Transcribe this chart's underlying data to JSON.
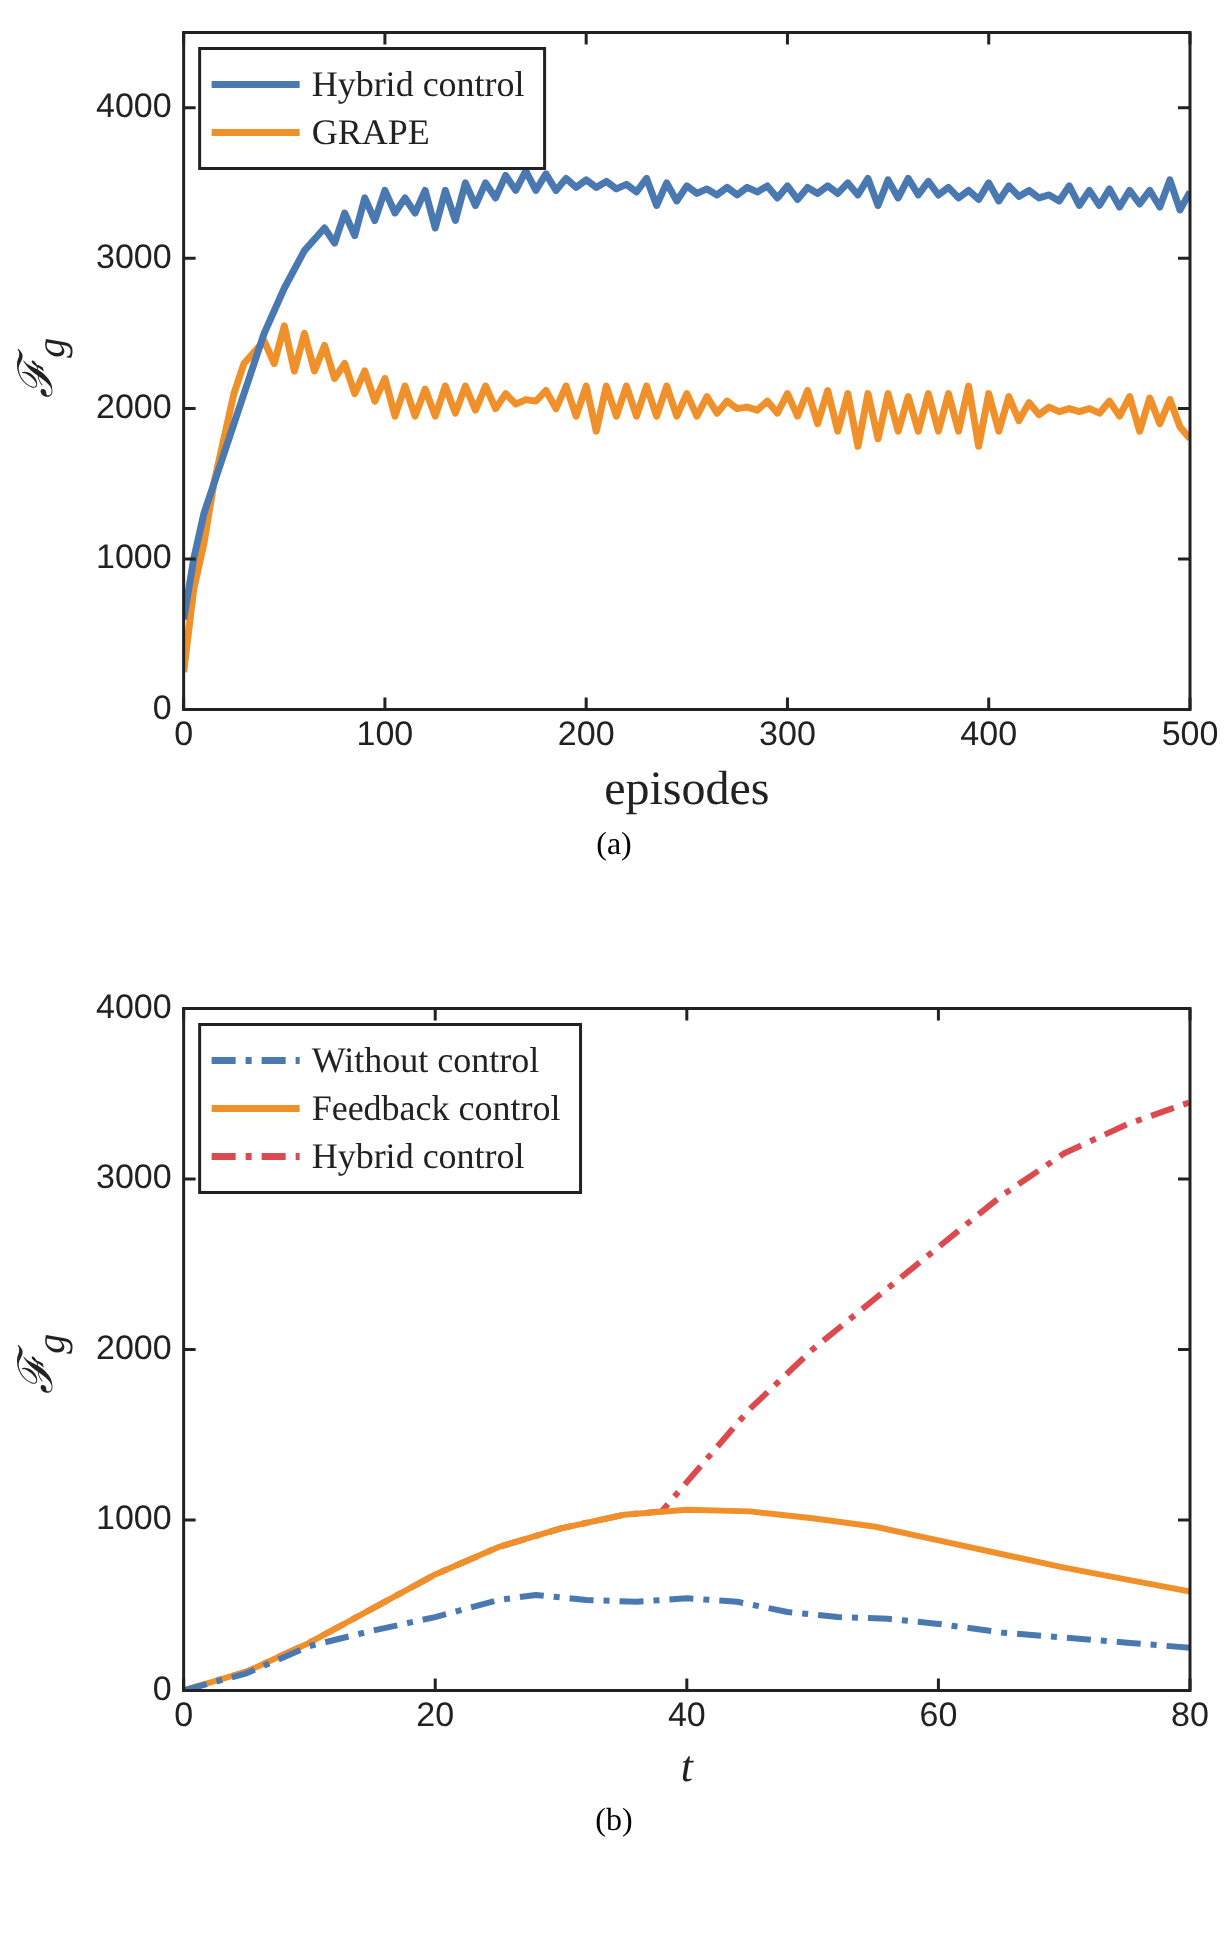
{
  "chart_data": [
    {
      "type": "line",
      "xlabel": "episodes",
      "ylabel": "ℱ$_{g}$",
      "annotations": [
        "(a)"
      ],
      "xlim": [
        0,
        500
      ],
      "ylim": [
        0,
        4500
      ],
      "xticks": [
        0,
        100,
        200,
        300,
        400,
        500
      ],
      "yticks": [
        0,
        1000,
        2000,
        3000,
        4000
      ],
      "grid": false,
      "legend": "top left",
      "line_style": "solid",
      "series": [
        {
          "name": "Hybrid control",
          "color": "#4a78b0",
          "x": [
            0,
            5,
            10,
            20,
            30,
            40,
            50,
            60,
            70,
            75,
            80,
            85,
            90,
            95,
            100,
            105,
            110,
            115,
            120,
            125,
            130,
            135,
            140,
            145,
            150,
            155,
            160,
            165,
            170,
            175,
            180,
            185,
            190,
            195,
            200,
            205,
            210,
            215,
            220,
            225,
            230,
            235,
            240,
            245,
            250,
            255,
            260,
            265,
            270,
            275,
            280,
            285,
            290,
            295,
            300,
            305,
            310,
            315,
            320,
            325,
            330,
            335,
            340,
            345,
            350,
            355,
            360,
            365,
            370,
            375,
            380,
            385,
            390,
            395,
            400,
            405,
            410,
            415,
            420,
            425,
            430,
            435,
            440,
            445,
            450,
            455,
            460,
            465,
            470,
            475,
            480,
            485,
            490,
            495,
            500
          ],
          "values": [
            600,
            1000,
            1300,
            1700,
            2100,
            2500,
            2800,
            3050,
            3200,
            3100,
            3300,
            3150,
            3400,
            3250,
            3450,
            3300,
            3400,
            3300,
            3450,
            3200,
            3450,
            3250,
            3500,
            3350,
            3500,
            3400,
            3550,
            3450,
            3580,
            3450,
            3560,
            3450,
            3530,
            3470,
            3520,
            3470,
            3510,
            3460,
            3490,
            3440,
            3530,
            3350,
            3500,
            3380,
            3480,
            3430,
            3460,
            3420,
            3470,
            3420,
            3470,
            3440,
            3480,
            3400,
            3480,
            3390,
            3470,
            3430,
            3480,
            3430,
            3500,
            3420,
            3530,
            3350,
            3520,
            3400,
            3530,
            3420,
            3510,
            3420,
            3470,
            3400,
            3450,
            3390,
            3500,
            3380,
            3480,
            3410,
            3450,
            3400,
            3420,
            3380,
            3480,
            3350,
            3450,
            3350,
            3460,
            3340,
            3450,
            3360,
            3450,
            3340,
            3520,
            3320,
            3440
          ]
        },
        {
          "name": "GRAPE",
          "color": "#f0902a",
          "x": [
            0,
            5,
            10,
            15,
            20,
            25,
            30,
            40,
            45,
            50,
            55,
            60,
            65,
            70,
            75,
            80,
            85,
            90,
            95,
            100,
            105,
            110,
            115,
            120,
            125,
            130,
            135,
            140,
            145,
            150,
            155,
            160,
            165,
            170,
            175,
            180,
            185,
            190,
            195,
            200,
            205,
            210,
            215,
            220,
            225,
            230,
            235,
            240,
            245,
            250,
            255,
            260,
            265,
            270,
            275,
            280,
            285,
            290,
            295,
            300,
            305,
            310,
            315,
            320,
            325,
            330,
            335,
            340,
            345,
            350,
            355,
            360,
            365,
            370,
            375,
            380,
            385,
            390,
            395,
            400,
            405,
            410,
            415,
            420,
            425,
            430,
            435,
            440,
            445,
            450,
            455,
            460,
            465,
            470,
            475,
            480,
            485,
            490,
            495,
            500
          ],
          "values": [
            250,
            800,
            1100,
            1500,
            1800,
            2100,
            2300,
            2450,
            2300,
            2550,
            2250,
            2500,
            2250,
            2420,
            2200,
            2300,
            2100,
            2250,
            2050,
            2200,
            1950,
            2150,
            1950,
            2130,
            1950,
            2150,
            1970,
            2150,
            1990,
            2150,
            2000,
            2100,
            2030,
            2060,
            2050,
            2120,
            2000,
            2150,
            1950,
            2150,
            1850,
            2150,
            1950,
            2150,
            1950,
            2150,
            1950,
            2150,
            1950,
            2100,
            1950,
            2080,
            1970,
            2050,
            2000,
            2010,
            1990,
            2050,
            1970,
            2100,
            1950,
            2120,
            1900,
            2120,
            1850,
            2100,
            1750,
            2100,
            1800,
            2100,
            1850,
            2080,
            1850,
            2100,
            1850,
            2100,
            1850,
            2150,
            1750,
            2100,
            1850,
            2080,
            1920,
            2040,
            1960,
            2010,
            1980,
            2000,
            1980,
            2000,
            1970,
            2050,
            1950,
            2080,
            1850,
            2070,
            1900,
            2060,
            1880,
            1800
          ]
        }
      ]
    },
    {
      "type": "line",
      "xlabel": "t",
      "ylabel": "ℱ$_{g}$",
      "annotations": [
        "(b)"
      ],
      "xlim": [
        0,
        80
      ],
      "ylim": [
        0,
        4000
      ],
      "xticks": [
        0,
        20,
        40,
        60,
        80
      ],
      "yticks": [
        0,
        1000,
        2000,
        3000,
        4000
      ],
      "grid": false,
      "legend": "top left",
      "series": [
        {
          "name": "Without control",
          "color": "#4a78b0",
          "line_style": "dashed",
          "x": [
            0,
            5,
            10,
            15,
            20,
            25,
            28,
            32,
            36,
            40,
            44,
            48,
            52,
            56,
            60,
            65,
            70,
            75,
            80
          ],
          "values": [
            0,
            100,
            260,
            350,
            430,
            530,
            560,
            530,
            520,
            540,
            520,
            460,
            430,
            420,
            390,
            340,
            310,
            280,
            250
          ]
        },
        {
          "name": "Feedback control",
          "color": "#f0902a",
          "line_style": "solid",
          "x": [
            0,
            5,
            10,
            15,
            20,
            25,
            30,
            35,
            40,
            45,
            50,
            55,
            60,
            65,
            70,
            75,
            80
          ],
          "values": [
            0,
            110,
            280,
            480,
            680,
            840,
            950,
            1030,
            1060,
            1050,
            1010,
            960,
            880,
            800,
            720,
            650,
            580
          ]
        },
        {
          "name": "Hybrid control",
          "color": "#dc4a50",
          "line_style": "dashed",
          "x": [
            0,
            5,
            10,
            15,
            20,
            25,
            30,
            35,
            38,
            45,
            50,
            55,
            60,
            65,
            70,
            75,
            80
          ],
          "values": [
            0,
            110,
            280,
            480,
            680,
            840,
            950,
            1030,
            1050,
            1650,
            2000,
            2300,
            2600,
            2900,
            3150,
            3320,
            3450
          ]
        }
      ]
    }
  ]
}
